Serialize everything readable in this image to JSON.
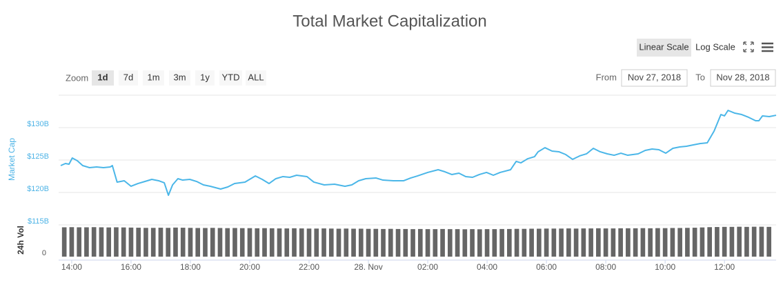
{
  "chart_data": {
    "type": "line",
    "title": "Total Market Capitalization",
    "y_axis_title": "Market Cap",
    "grid": true,
    "log_scale": false,
    "xlim": [
      13.56,
      37.74
    ],
    "xticks": [
      {
        "value": 14,
        "label": "14:00"
      },
      {
        "value": 16,
        "label": "16:00"
      },
      {
        "value": 18,
        "label": "18:00"
      },
      {
        "value": 20,
        "label": "20:00"
      },
      {
        "value": 22,
        "label": "22:00"
      },
      {
        "value": 24,
        "label": "28. Nov"
      },
      {
        "value": 26,
        "label": "02:00"
      },
      {
        "value": 28,
        "label": "04:00"
      },
      {
        "value": 30,
        "label": "06:00"
      },
      {
        "value": 32,
        "label": "08:00"
      },
      {
        "value": 34,
        "label": "10:00"
      },
      {
        "value": 36,
        "label": "12:00"
      }
    ],
    "ylim": [
      115,
      135
    ],
    "yticks": [
      {
        "value": 115,
        "label": "$115B"
      },
      {
        "value": 120,
        "label": "$120B"
      },
      {
        "value": 125,
        "label": "$125B"
      },
      {
        "value": 130,
        "label": "$130B"
      }
    ],
    "series": [
      {
        "color": "#4ab6e8",
        "x": [
          13.63,
          13.79,
          13.91,
          14.02,
          14.19,
          14.37,
          14.6,
          14.84,
          15.07,
          15.3,
          15.37,
          15.53,
          15.77,
          16,
          16.23,
          16.47,
          16.7,
          16.93,
          17.12,
          17.26,
          17.4,
          17.58,
          17.74,
          17.98,
          18.21,
          18.44,
          18.67,
          19.02,
          19.26,
          19.49,
          19.84,
          20.19,
          20.42,
          20.65,
          20.88,
          21.12,
          21.35,
          21.58,
          21.93,
          22.16,
          22.51,
          22.86,
          23.21,
          23.44,
          23.67,
          23.91,
          24.26,
          24.49,
          24.84,
          25.19,
          25.42,
          25.65,
          26,
          26.35,
          26.58,
          26.81,
          27.05,
          27.28,
          27.51,
          27.74,
          27.98,
          28.21,
          28.44,
          28.79,
          28.98,
          29.14,
          29.37,
          29.6,
          29.72,
          29.95,
          30.19,
          30.42,
          30.65,
          30.88,
          31.12,
          31.35,
          31.58,
          31.81,
          32.05,
          32.28,
          32.51,
          32.74,
          33.09,
          33.33,
          33.56,
          33.79,
          34.02,
          34.26,
          34.49,
          34.72,
          34.95,
          35.19,
          35.42,
          35.65,
          35.88,
          36,
          36.12,
          36.35,
          36.58,
          36.81,
          37.05,
          37.16,
          37.28,
          37.51,
          37.74
        ],
        "values": [
          124.15,
          124.47,
          124.36,
          125.32,
          124.89,
          124.15,
          123.83,
          123.94,
          123.83,
          123.94,
          124.15,
          121.6,
          121.81,
          120.96,
          121.38,
          121.7,
          122.02,
          121.81,
          121.49,
          119.57,
          121.17,
          122.13,
          121.91,
          122.02,
          121.7,
          121.17,
          120.96,
          120.53,
          120.85,
          121.38,
          121.6,
          122.55,
          122.02,
          121.38,
          122.13,
          122.45,
          122.34,
          122.66,
          122.45,
          121.6,
          121.17,
          121.28,
          120.96,
          121.17,
          121.81,
          122.13,
          122.23,
          121.91,
          121.81,
          121.81,
          122.23,
          122.55,
          123.09,
          123.51,
          123.19,
          122.77,
          122.98,
          122.45,
          122.34,
          122.77,
          123.09,
          122.66,
          123.09,
          123.51,
          124.79,
          124.57,
          125.21,
          125.53,
          126.28,
          126.91,
          126.38,
          126.28,
          125.85,
          125.11,
          125.64,
          125.96,
          126.81,
          126.28,
          125.96,
          125.74,
          126.06,
          125.74,
          125.96,
          126.49,
          126.7,
          126.6,
          126.06,
          126.81,
          127.02,
          127.13,
          127.34,
          127.55,
          127.66,
          129.47,
          132.02,
          131.81,
          132.66,
          132.23,
          132.02,
          131.6,
          131.06,
          131.06,
          131.81,
          131.7,
          131.91
        ]
      }
    ],
    "volume": {
      "title": "24h Vol",
      "color": "#666666",
      "ylim": [
        0,
        22
      ],
      "yticks": [
        0
      ],
      "x": [
        13.75,
        14,
        14.25,
        14.5,
        14.75,
        15,
        15.25,
        15.5,
        15.75,
        16,
        16.25,
        16.5,
        16.75,
        17,
        17.25,
        17.5,
        17.75,
        18,
        18.25,
        18.5,
        18.75,
        19,
        19.25,
        19.5,
        19.75,
        20,
        20.25,
        20.5,
        20.75,
        21,
        21.25,
        21.5,
        21.75,
        22,
        22.25,
        22.5,
        22.75,
        23,
        23.25,
        23.5,
        23.75,
        24,
        24.25,
        24.5,
        24.75,
        25,
        25.25,
        25.5,
        25.75,
        26,
        26.25,
        26.5,
        26.75,
        27,
        27.25,
        27.5,
        27.75,
        28,
        28.25,
        28.5,
        28.75,
        29,
        29.25,
        29.5,
        29.75,
        30,
        30.25,
        30.5,
        30.75,
        31,
        31.25,
        31.5,
        31.75,
        32,
        32.25,
        32.5,
        32.75,
        33,
        33.25,
        33.5,
        33.75,
        34,
        34.25,
        34.5,
        34.75,
        35,
        35.25,
        35.5,
        35.75,
        36,
        36.25,
        36.5,
        36.75,
        37,
        37.25,
        37.5
      ],
      "values": [
        20.8,
        20.9,
        20.8,
        20.8,
        20.9,
        20.8,
        20.7,
        20.8,
        20.7,
        20.6,
        20.5,
        20.4,
        20.4,
        20.5,
        20.4,
        20.6,
        20.5,
        20.4,
        20.3,
        20.3,
        20.4,
        20.3,
        20.2,
        20.3,
        20.2,
        20.2,
        20.1,
        20.2,
        20.1,
        20.0,
        20.0,
        20.1,
        20.0,
        19.9,
        19.9,
        20.0,
        19.9,
        19.8,
        19.9,
        19.8,
        19.8,
        19.7,
        19.7,
        19.6,
        19.7,
        19.6,
        19.6,
        19.5,
        19.6,
        19.5,
        19.5,
        19.6,
        19.5,
        19.5,
        19.4,
        19.5,
        19.4,
        19.5,
        19.5,
        19.6,
        19.6,
        19.7,
        19.7,
        19.8,
        19.8,
        19.9,
        19.9,
        19.9,
        20.0,
        19.9,
        20.0,
        20.0,
        20.1,
        20.0,
        20.0,
        20.1,
        20.1,
        20.1,
        20.2,
        20.1,
        20.2,
        20.2,
        20.3,
        20.3,
        20.4,
        20.5,
        20.7,
        20.9,
        21.0,
        21.1,
        21.1,
        21.2,
        21.1,
        21.2,
        21.2,
        21.1
      ]
    }
  },
  "controls": {
    "scale_buttons": [
      "Linear Scale",
      "Log Scale"
    ],
    "zoom_label": "Zoom",
    "zoom_buttons": [
      "1d",
      "7d",
      "1m",
      "3m",
      "1y",
      "YTD",
      "ALL"
    ],
    "from_label": "From",
    "from_date": "Nov 27, 2018",
    "to_label": "To",
    "to_date": "Nov 28, 2018"
  }
}
